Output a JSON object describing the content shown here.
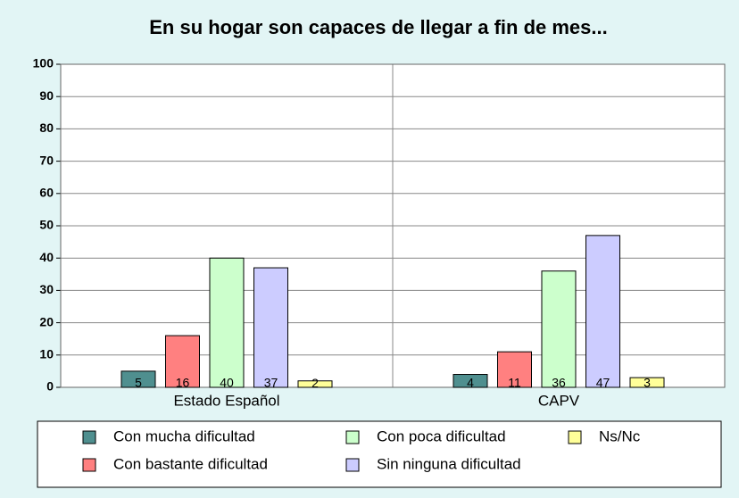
{
  "chart_data": {
    "type": "bar",
    "title": "En su hogar son capaces de llegar a fin de mes...",
    "categories": [
      "Estado Español",
      "CAPV"
    ],
    "series": [
      {
        "name": "Con mucha dificultad",
        "color": "#4f8f8f",
        "values": [
          5,
          4
        ]
      },
      {
        "name": "Con bastante dificultad",
        "color": "#ff8080",
        "values": [
          16,
          11
        ]
      },
      {
        "name": "Con poca dificultad",
        "color": "#ccffcc",
        "values": [
          40,
          36
        ]
      },
      {
        "name": "Sin ninguna dificultad",
        "color": "#ccccff",
        "values": [
          37,
          47
        ]
      },
      {
        "name": "Ns/Nc",
        "color": "#ffff99",
        "values": [
          2,
          3
        ]
      }
    ],
    "ylim": [
      0,
      100
    ],
    "yticks": [
      0,
      10,
      20,
      30,
      40,
      50,
      60,
      70,
      80,
      90,
      100
    ],
    "grid": true,
    "legend": "bottom"
  }
}
